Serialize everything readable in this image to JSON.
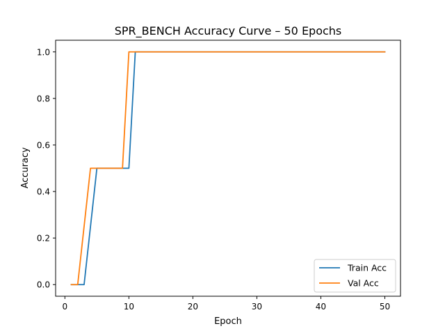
{
  "chart_data": {
    "type": "line",
    "title": "SPR_BENCH Accuracy Curve – 50 Epochs",
    "xlabel": "Epoch",
    "ylabel": "Accuracy",
    "xlim": [
      -1.45,
      52.45
    ],
    "ylim": [
      -0.05,
      1.05
    ],
    "xticks": [
      0,
      10,
      20,
      30,
      40,
      50
    ],
    "yticks": [
      0.0,
      0.2,
      0.4,
      0.6,
      0.8,
      1.0
    ],
    "xtick_labels": [
      "0",
      "10",
      "20",
      "30",
      "40",
      "50"
    ],
    "ytick_labels": [
      "0.0",
      "0.2",
      "0.4",
      "0.6",
      "0.8",
      "1.0"
    ],
    "grid": false,
    "legend_position": "lower-right",
    "series": [
      {
        "name": "Train Acc",
        "color": "#1f77b4",
        "x": [
          1,
          3,
          5,
          10,
          11,
          50
        ],
        "y": [
          0.0,
          0.0,
          0.5,
          0.5,
          1.0,
          1.0
        ]
      },
      {
        "name": "Val Acc",
        "color": "#ff7f0e",
        "x": [
          1,
          2,
          4,
          9,
          10,
          50
        ],
        "y": [
          0.0,
          0.0,
          0.5,
          0.5,
          1.0,
          1.0
        ]
      }
    ]
  }
}
